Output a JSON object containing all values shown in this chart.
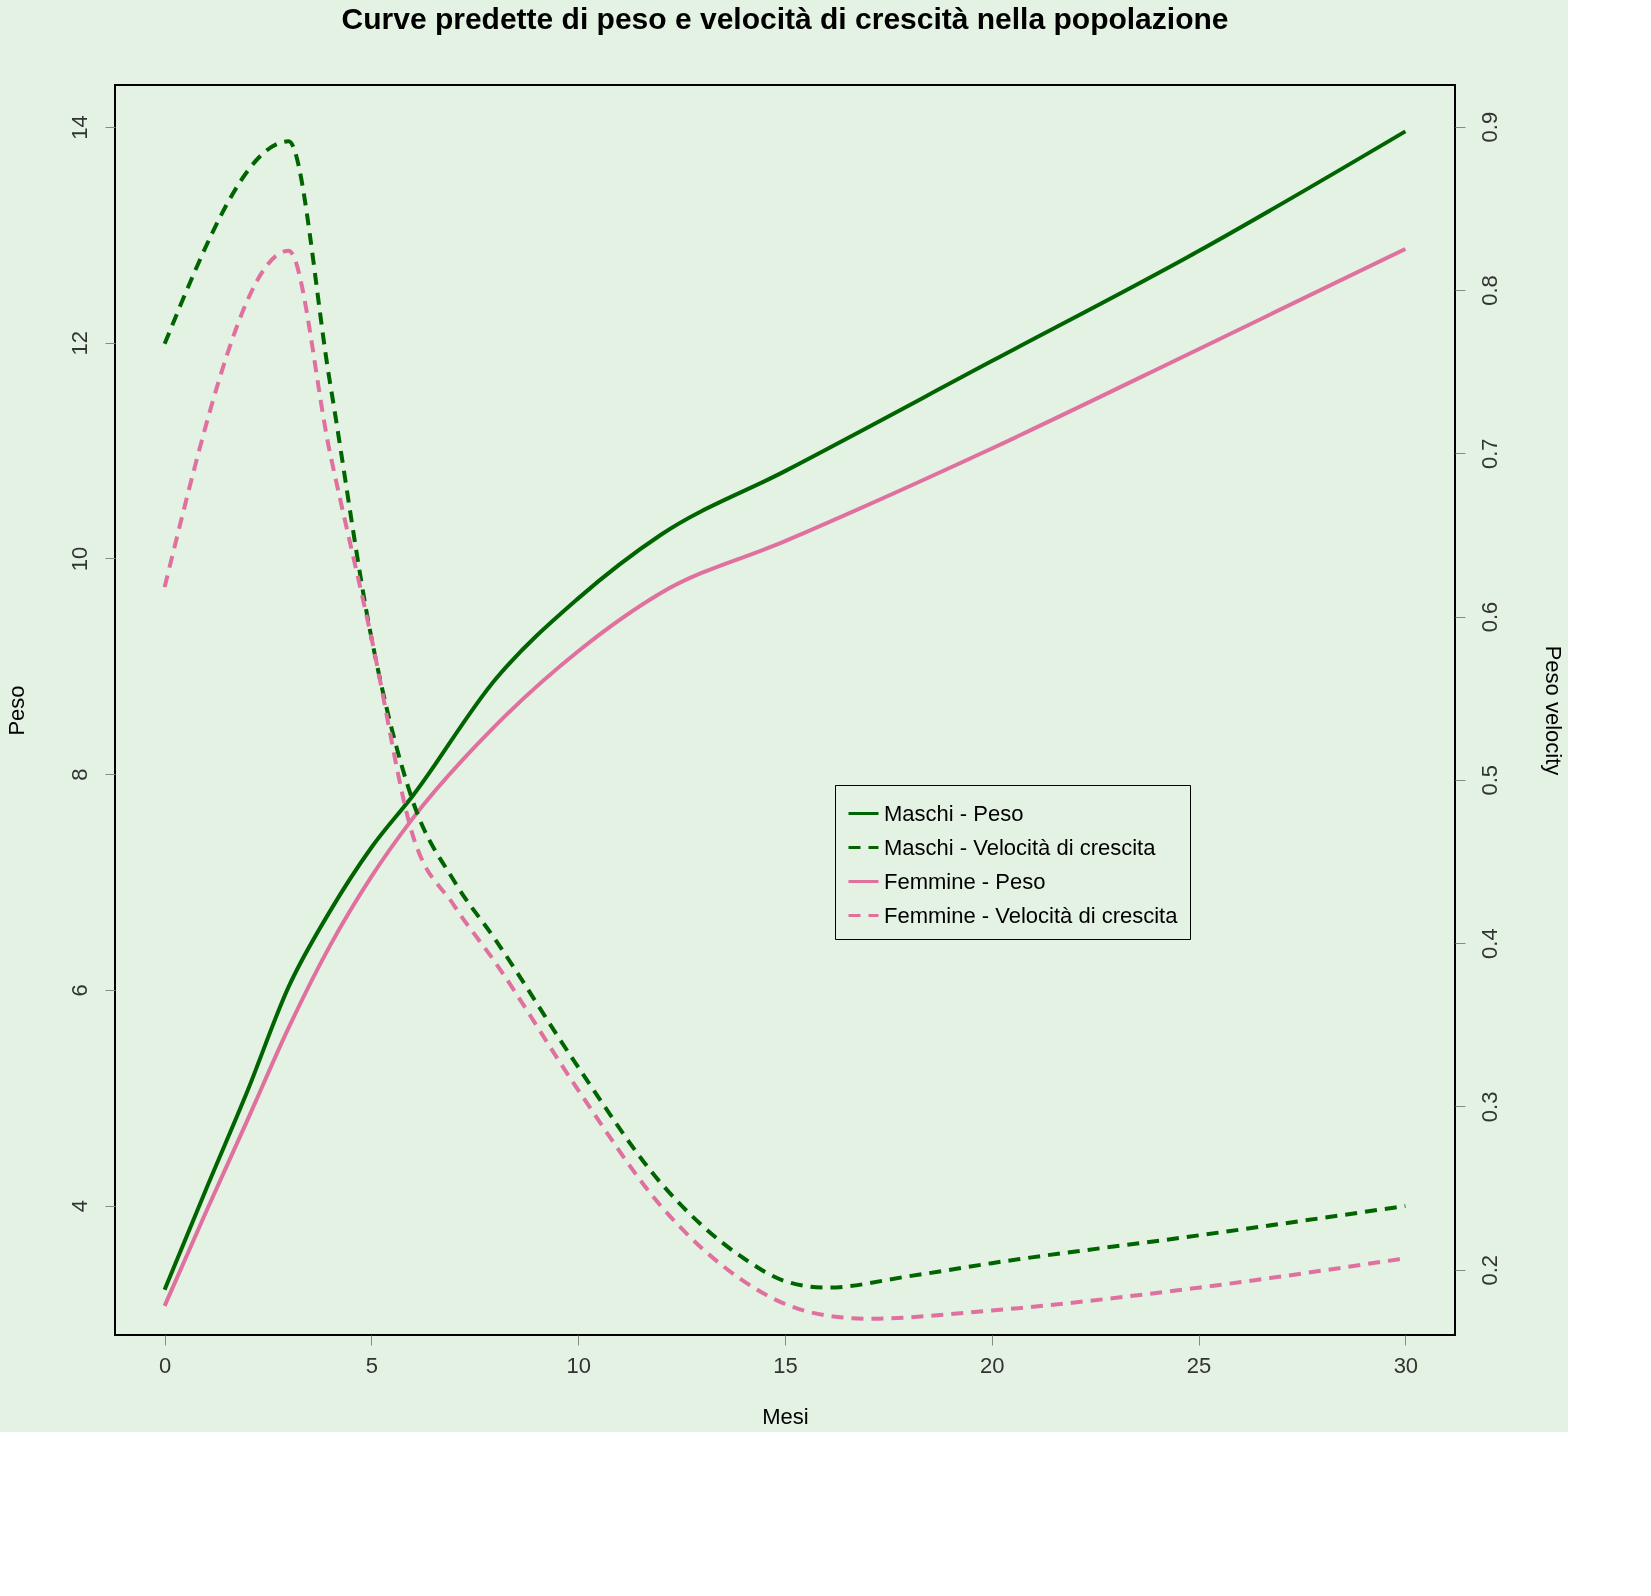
{
  "chart_data": {
    "type": "line",
    "title": "Curve predette di peso e velocità di crescità nella popolazione",
    "xlabel": "Mesi",
    "ylabel": "Peso",
    "y2label": "Peso velocity",
    "xlim": [
      -1.2,
      31.2
    ],
    "xticks": [
      0,
      5,
      10,
      15,
      20,
      25,
      30
    ],
    "ylim": [
      2.8,
      14.39
    ],
    "yticks": [
      4,
      6,
      8,
      10,
      12,
      14
    ],
    "y2lim": [
      0.16,
      0.9255
    ],
    "y2ticks": [
      0.2,
      0.3,
      0.4,
      0.5,
      0.6,
      0.7,
      0.8,
      0.9
    ],
    "grid": false,
    "legend": "right",
    "marker": "none",
    "series": [
      {
        "name": "Maschi - Peso",
        "color": "#006400",
        "line_style": "solid",
        "x": [
          0,
          1,
          2,
          3,
          4,
          5,
          6,
          8,
          10,
          12,
          15,
          20,
          25,
          30
        ],
        "values": [
          3.22,
          4.15,
          5.06,
          6.03,
          6.73,
          7.32,
          7.8,
          8.88,
          9.63,
          10.22,
          10.81,
          11.83,
          12.85,
          13.96
        ]
      },
      {
        "name": "Maschi - Velocità di crescita",
        "color": "#006400",
        "line_style": "dashed",
        "axis": "y2",
        "x": [
          0,
          3,
          4,
          5,
          6,
          7,
          8,
          10,
          12,
          14,
          15,
          16,
          18,
          20,
          25,
          30
        ],
        "values": [
          0.767,
          0.891,
          0.743,
          0.587,
          0.487,
          0.438,
          0.402,
          0.324,
          0.253,
          0.207,
          0.193,
          0.189,
          0.196,
          0.204,
          0.221,
          0.239
        ]
      },
      {
        "name": "Femmine - Peso",
        "color": "#e0719f",
        "line_style": "solid",
        "x": [
          0,
          1,
          2,
          3,
          4,
          5,
          6,
          8,
          10,
          12,
          15,
          20,
          25,
          30
        ],
        "values": [
          3.07,
          3.94,
          4.79,
          5.65,
          6.41,
          7.05,
          7.59,
          8.45,
          9.14,
          9.68,
          10.16,
          11.02,
          11.94,
          12.87
        ]
      },
      {
        "name": "Femmine - Velocità di crescita",
        "color": "#e0719f",
        "line_style": "dashed",
        "axis": "y2",
        "x": [
          0,
          3,
          4,
          5,
          6,
          7,
          8,
          10,
          12,
          14,
          15,
          16,
          17,
          20,
          25,
          30
        ],
        "values": [
          0.618,
          0.824,
          0.7,
          0.587,
          0.466,
          0.423,
          0.388,
          0.31,
          0.239,
          0.193,
          0.179,
          0.172,
          0.17,
          0.175,
          0.189,
          0.207
        ]
      }
    ]
  }
}
